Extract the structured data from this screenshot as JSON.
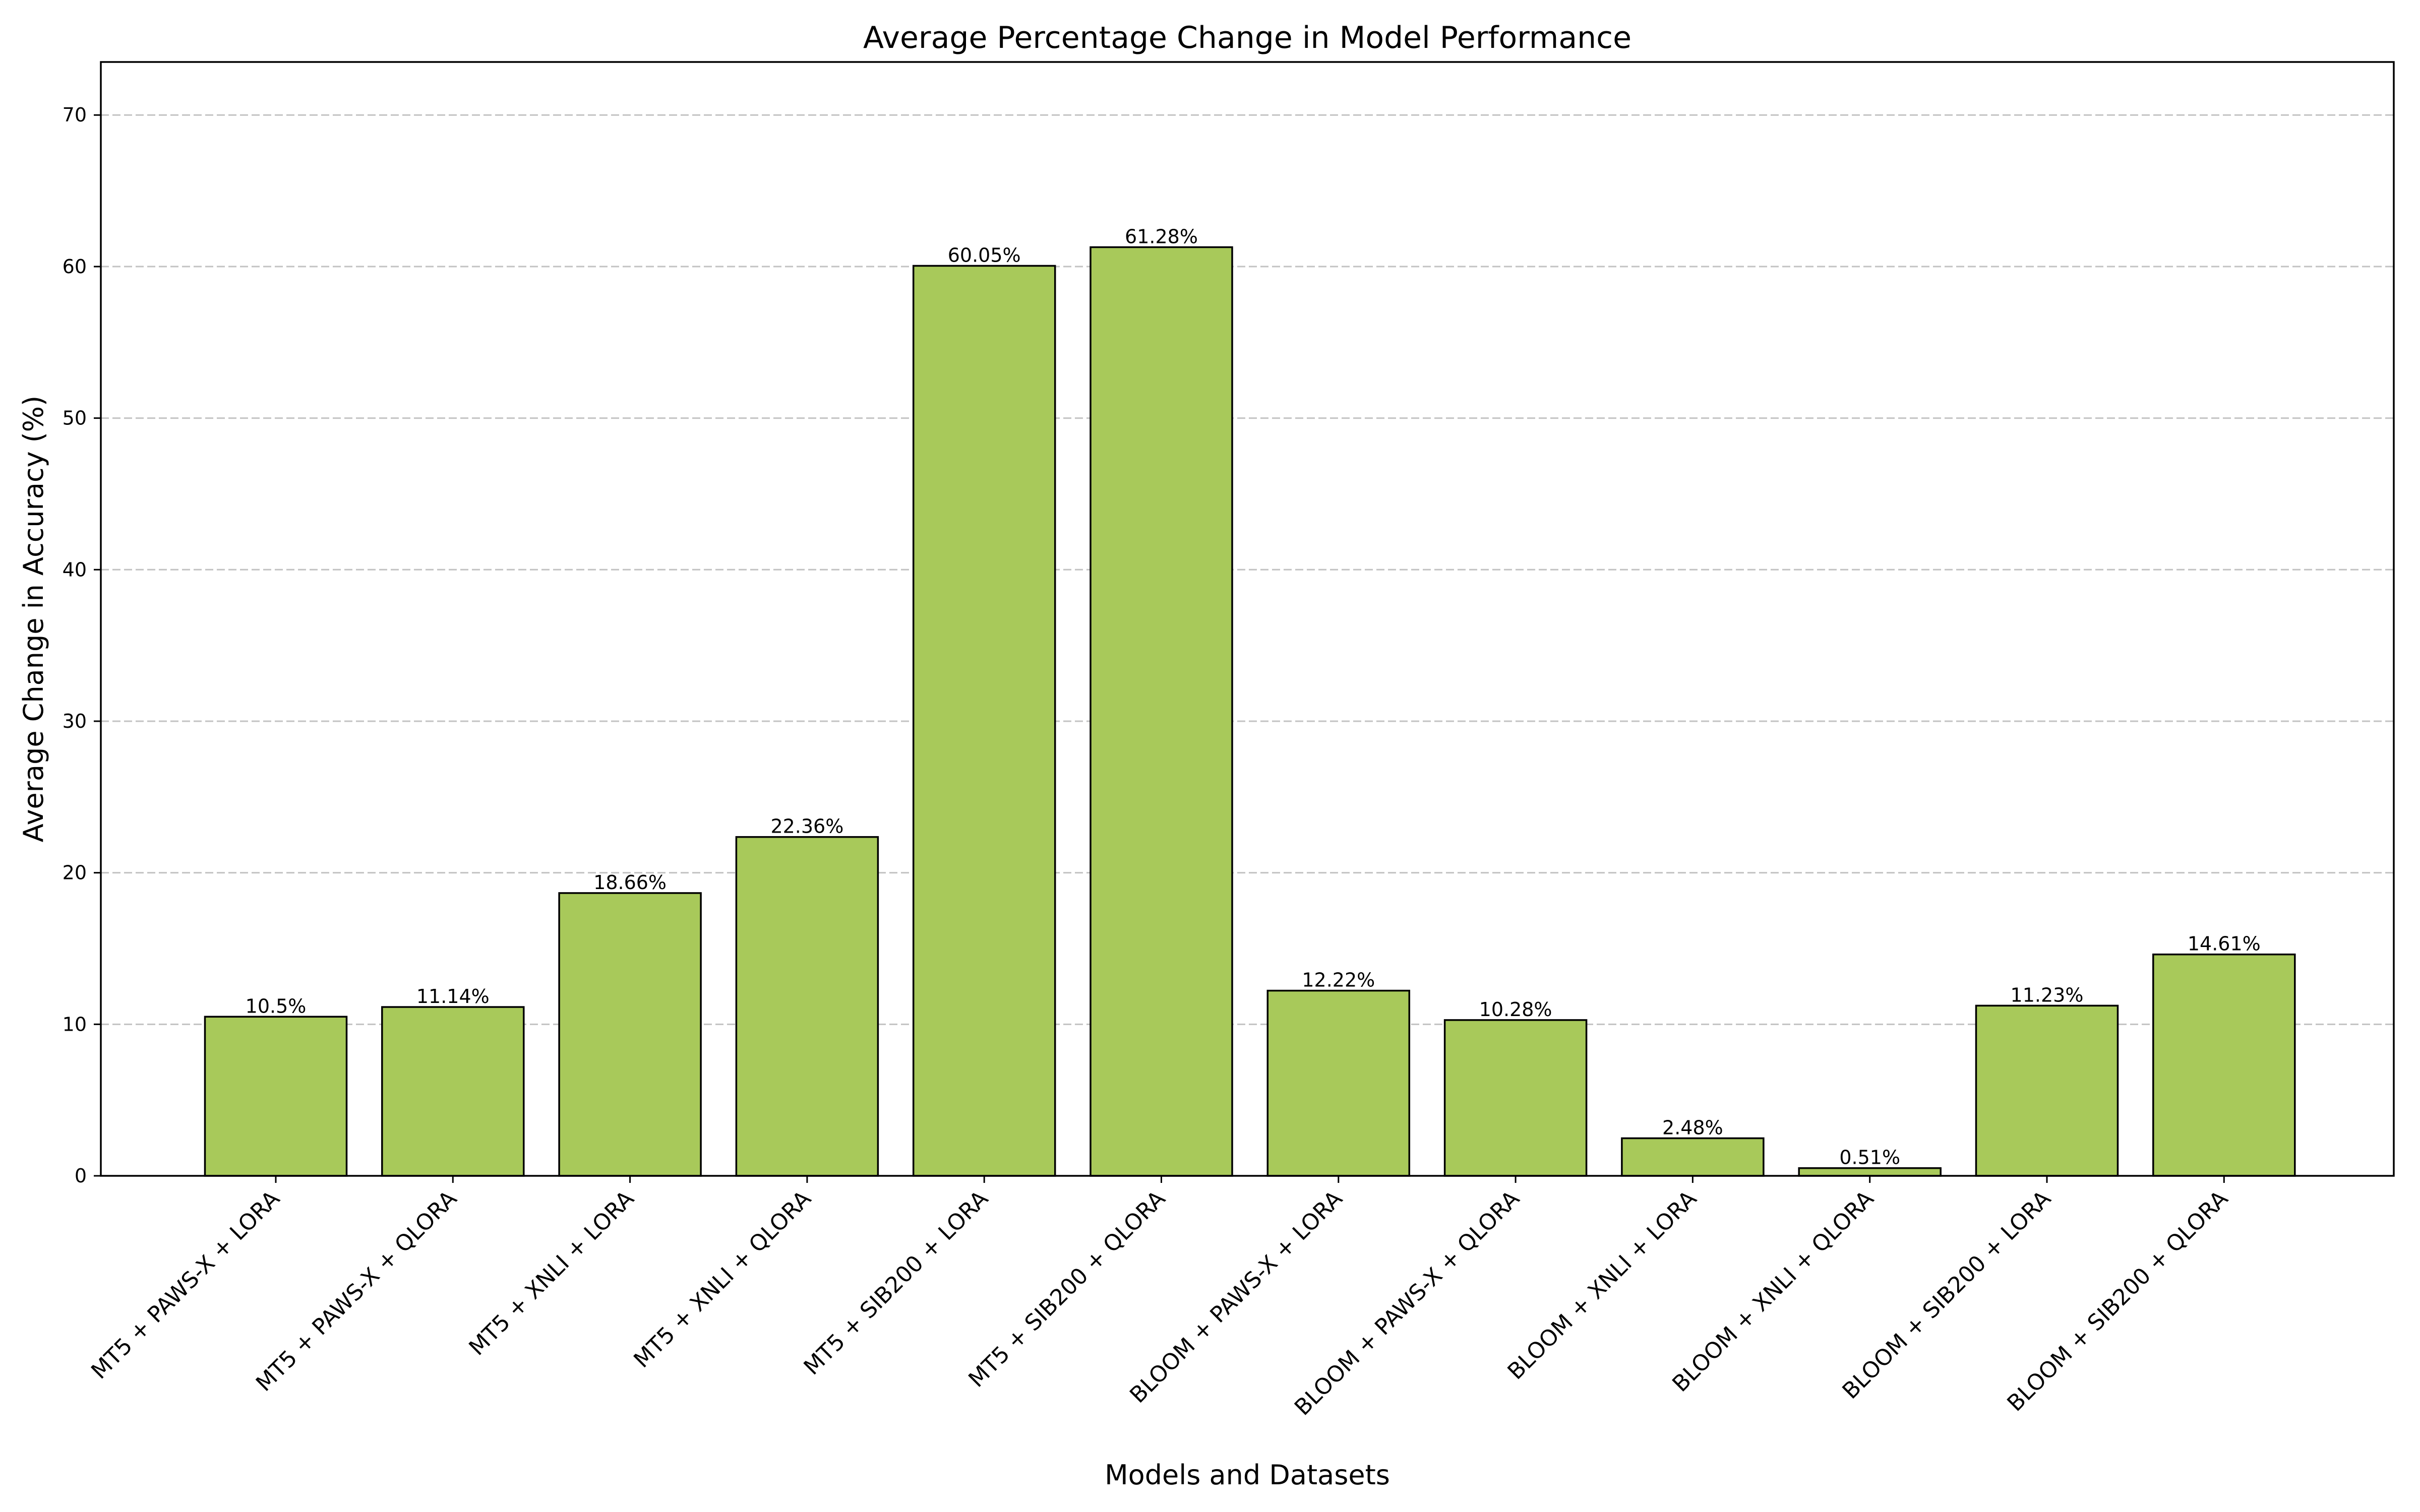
{
  "chart_data": {
    "type": "bar",
    "title": "Average Percentage Change in Model Performance",
    "xlabel": "Models and Datasets",
    "ylabel": "Average Change in Accuracy (%)",
    "categories": [
      "MT5 + PAWS-X + LORA",
      "MT5 + PAWS-X + QLORA",
      "MT5 + XNLI + LORA",
      "MT5 + XNLI + QLORA",
      "MT5 + SIB200 + LORA",
      "MT5 + SIB200 + QLORA",
      "BLOOM + PAWS-X + LORA",
      "BLOOM + PAWS-X + QLORA",
      "BLOOM + XNLI + LORA",
      "BLOOM + XNLI + QLORA",
      "BLOOM + SIB200 + LORA",
      "BLOOM + SIB200 + QLORA"
    ],
    "values": [
      10.5,
      11.14,
      18.66,
      22.36,
      60.05,
      61.28,
      12.22,
      10.28,
      2.48,
      0.51,
      11.23,
      14.61
    ],
    "data_labels": [
      "10.5%",
      "11.14%",
      "18.66%",
      "22.36%",
      "60.05%",
      "61.28%",
      "12.22%",
      "10.28%",
      "2.48%",
      "0.51%",
      "11.23%",
      "14.61%"
    ],
    "ylim": [
      0,
      73.5
    ],
    "yticks": [
      0,
      10,
      20,
      30,
      40,
      50,
      60,
      70
    ],
    "grid": "y-dashed",
    "bar_color": "#a8c95a",
    "edge_color": "#000000"
  }
}
